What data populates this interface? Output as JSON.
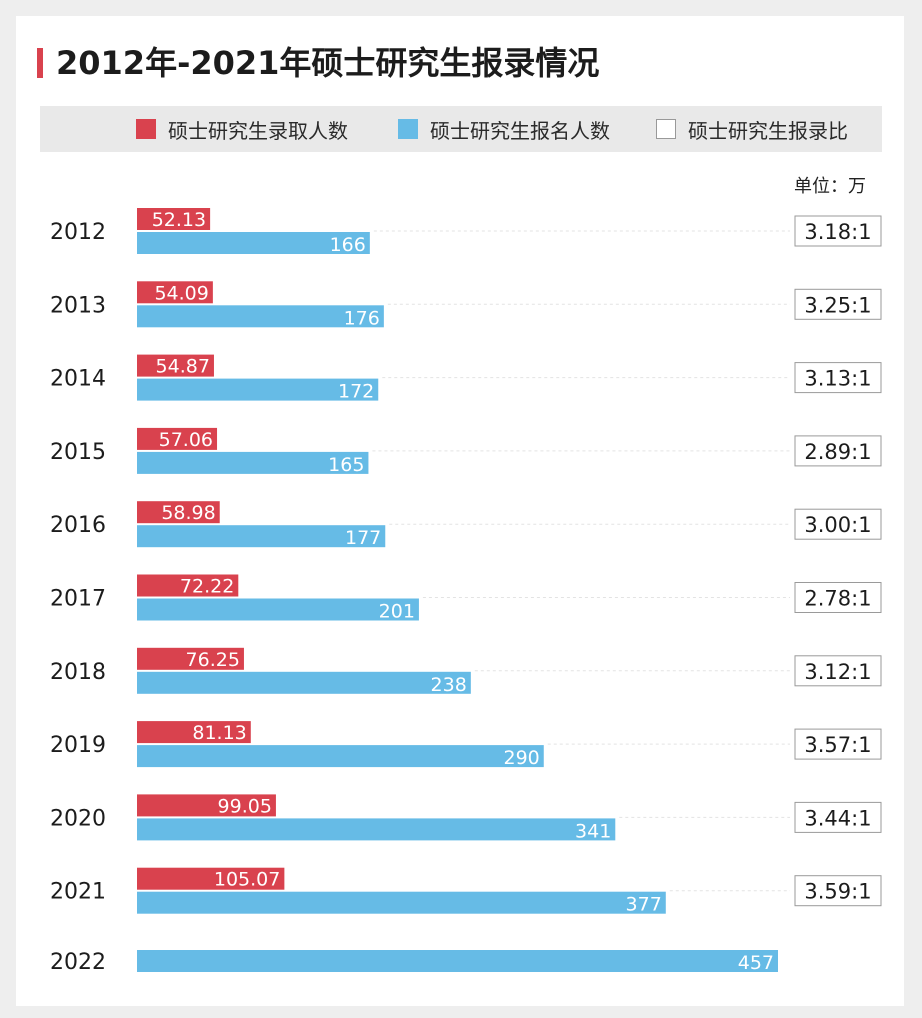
{
  "title": "2012年-2021年硕士研究生报录情况",
  "unit": "单位：万",
  "legend": [
    {
      "label": "硕士研究生录取人数",
      "color": "#d9424e"
    },
    {
      "label": "硕士研究生报名人数",
      "color": "#66bbe6"
    },
    {
      "label": "硕士研究生报录比",
      "color": "#ffffff"
    }
  ],
  "chart_data": {
    "type": "bar",
    "orientation": "horizontal",
    "categories": [
      "2012",
      "2013",
      "2014",
      "2015",
      "2016",
      "2017",
      "2018",
      "2019",
      "2020",
      "2021",
      "2022"
    ],
    "series": [
      {
        "name": "硕士研究生录取人数",
        "color": "#d9424e",
        "values": [
          52.13,
          54.09,
          54.87,
          57.06,
          58.98,
          72.22,
          76.25,
          81.13,
          99.05,
          105.07,
          null
        ],
        "labels": [
          "52.13",
          "54.09",
          "54.87",
          "57.06",
          "58.98",
          "72.22",
          "76.25",
          "81.13",
          "99.05",
          "105.07",
          ""
        ]
      },
      {
        "name": "硕士研究生报名人数",
        "color": "#66bbe6",
        "values": [
          166,
          176,
          172,
          165,
          177,
          201,
          238,
          290,
          341,
          377,
          457
        ],
        "labels": [
          "166",
          "176",
          "172",
          "165",
          "177",
          "201",
          "238",
          "290",
          "341",
          "377",
          "457"
        ]
      }
    ],
    "ratios": [
      "3.18:1",
      "3.25:1",
      "3.13:1",
      "2.89:1",
      "3.00:1",
      "2.78:1",
      "3.12:1",
      "3.57:1",
      "3.44:1",
      "3.59:1",
      ""
    ]
  }
}
